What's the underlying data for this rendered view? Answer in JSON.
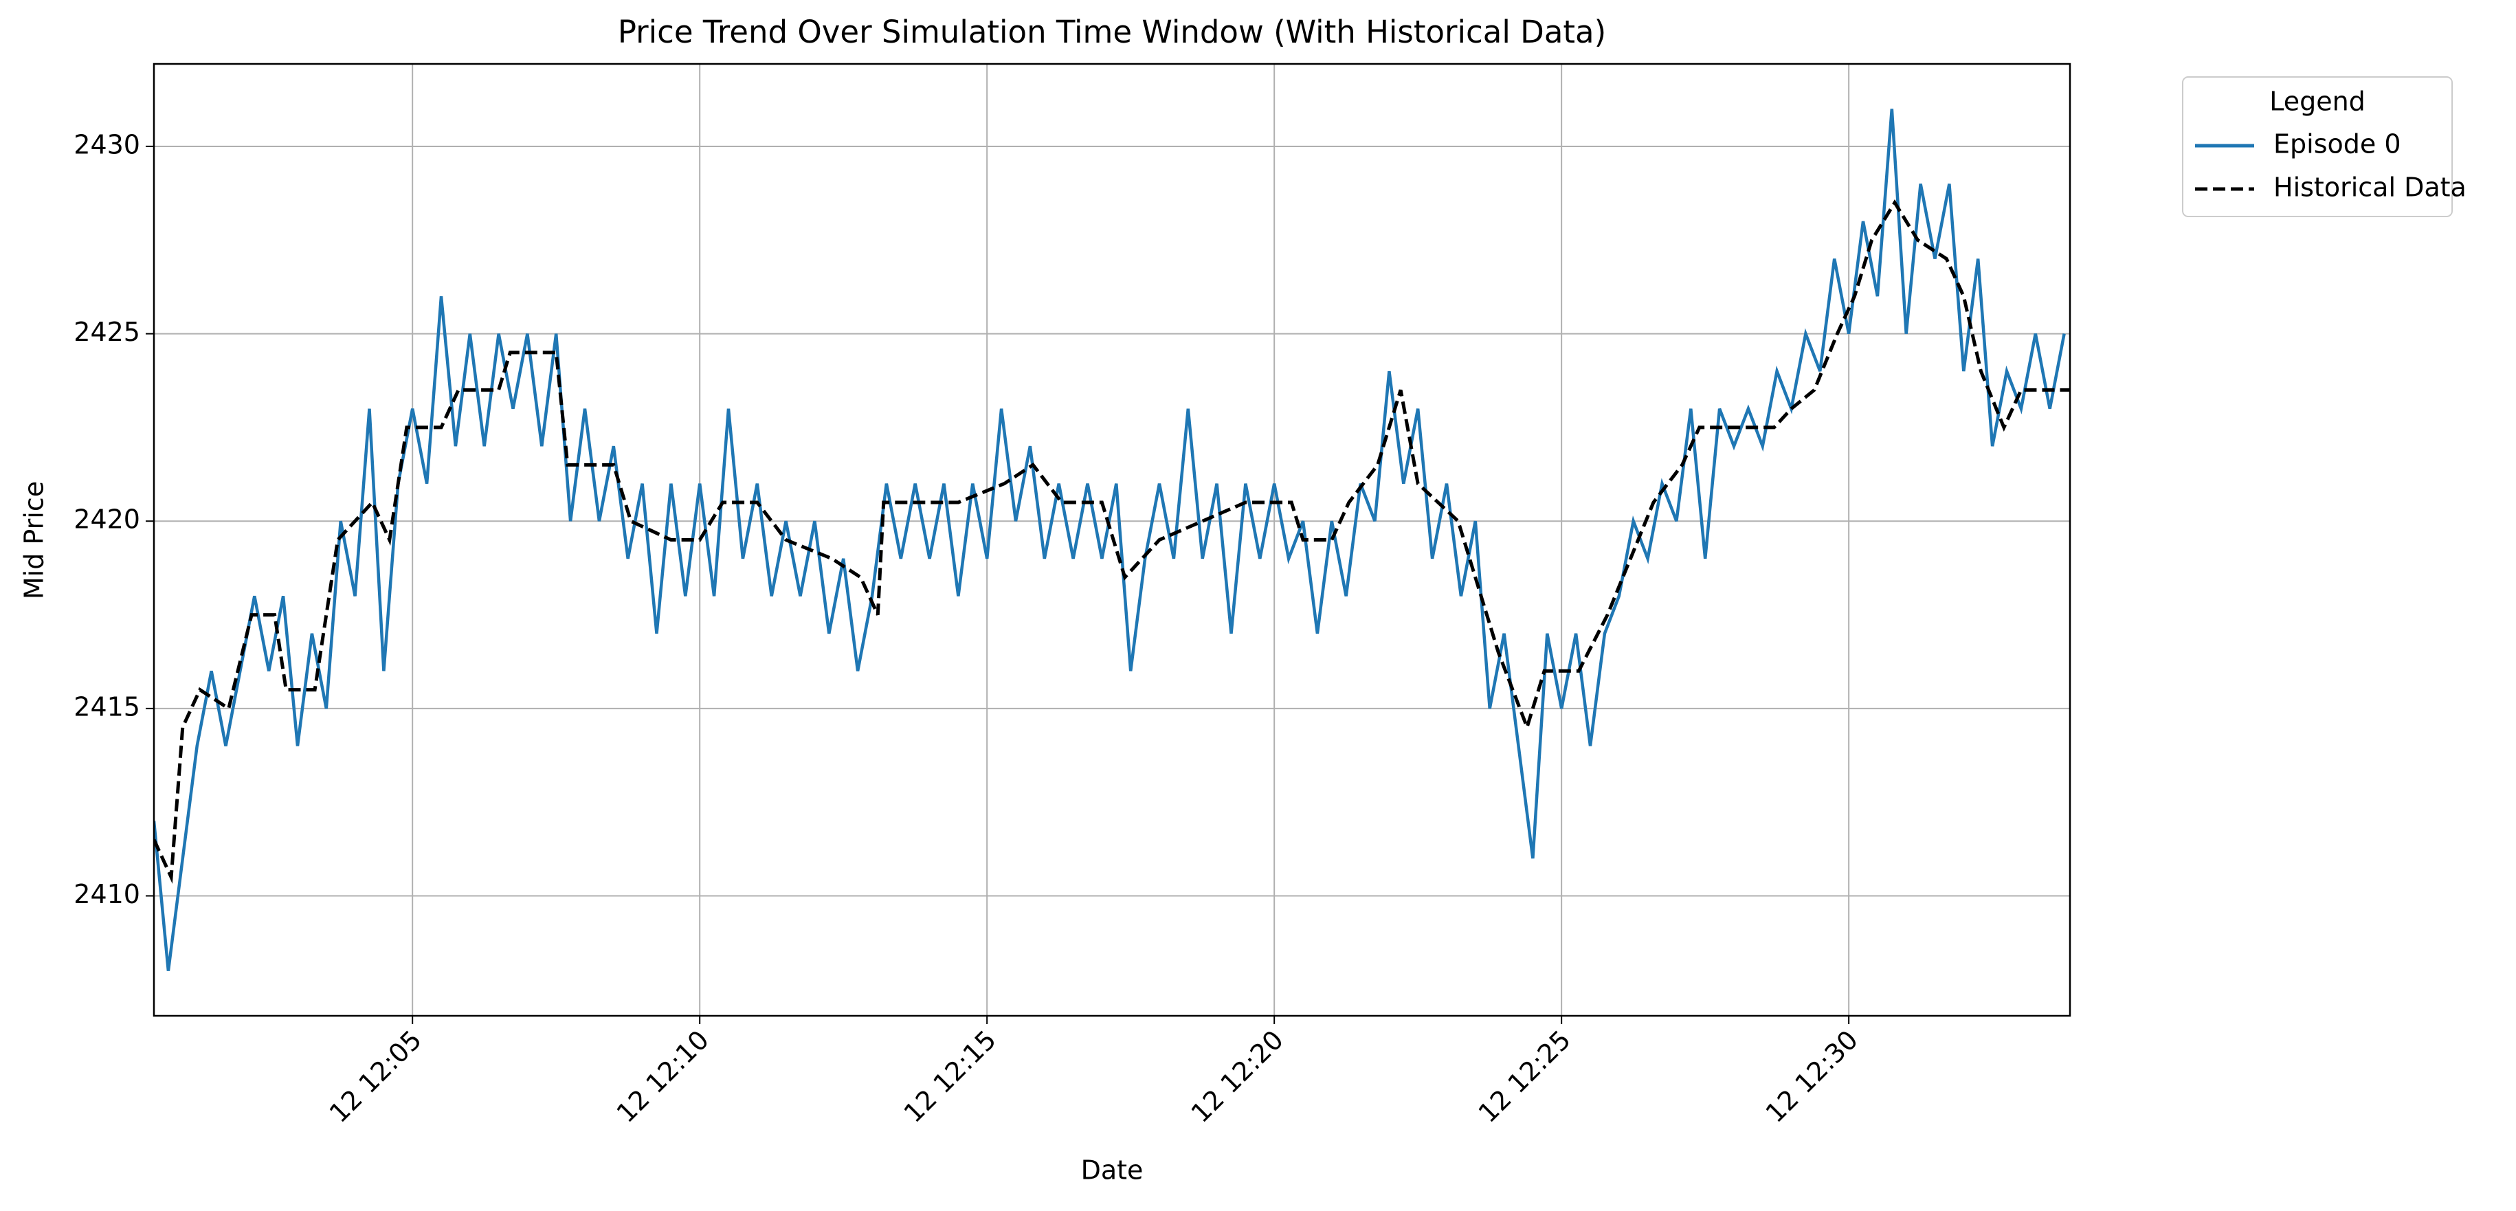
{
  "chart_data": {
    "type": "line",
    "title": "Price Trend Over Simulation Time Window (With Historical Data)",
    "xlabel": "Date",
    "ylabel": "Mid Price",
    "legend_title": "Legend",
    "legend_position": "outside upper right",
    "grid": true,
    "xlim": [
      0.5,
      33.85
    ],
    "ylim": [
      2406.8,
      2432.2
    ],
    "xticks": [
      {
        "value": 5,
        "label": "12 12:05"
      },
      {
        "value": 10,
        "label": "12 12:10"
      },
      {
        "value": 15,
        "label": "12 12:15"
      },
      {
        "value": 20,
        "label": "12 12:20"
      },
      {
        "value": 25,
        "label": "12 12:25"
      },
      {
        "value": 30,
        "label": "12 12:30"
      }
    ],
    "yticks": [
      2410,
      2415,
      2420,
      2425,
      2430
    ],
    "series": [
      {
        "name": "Episode 0",
        "color": "#1f77b4",
        "dash": false,
        "x": [
          0.5,
          0.75,
          1.0,
          1.25,
          1.5,
          1.75,
          2.0,
          2.25,
          2.5,
          2.75,
          3.0,
          3.25,
          3.5,
          3.75,
          4.0,
          4.25,
          4.5,
          4.75,
          5.0,
          5.25,
          5.5,
          5.75,
          6.0,
          6.25,
          6.5,
          6.75,
          7.0,
          7.25,
          7.5,
          7.75,
          8.0,
          8.25,
          8.5,
          8.75,
          9.0,
          9.25,
          9.5,
          9.75,
          10.0,
          10.25,
          10.5,
          10.75,
          11.0,
          11.25,
          11.5,
          11.75,
          12.0,
          12.25,
          12.5,
          12.75,
          13.0,
          13.25,
          13.5,
          13.75,
          14.0,
          14.25,
          14.5,
          14.75,
          15.0,
          15.25,
          15.5,
          15.75,
          16.0,
          16.25,
          16.5,
          16.75,
          17.0,
          17.25,
          17.5,
          17.75,
          18.0,
          18.25,
          18.5,
          18.75,
          19.0,
          19.25,
          19.5,
          19.75,
          20.0,
          20.25,
          20.5,
          20.75,
          21.0,
          21.25,
          21.5,
          21.75,
          22.0,
          22.25,
          22.5,
          22.75,
          23.0,
          23.25,
          23.5,
          23.75,
          24.0,
          24.25,
          24.5,
          24.75,
          25.0,
          25.25,
          25.5,
          25.75,
          26.0,
          26.25,
          26.5,
          26.75,
          27.0,
          27.25,
          27.5,
          27.75,
          28.0,
          28.25,
          28.5,
          28.75,
          29.0,
          29.25,
          29.5,
          29.75,
          30.0,
          30.25,
          30.5,
          30.75,
          31.0,
          31.25,
          31.5,
          31.75,
          32.0,
          32.25,
          32.5,
          32.75,
          33.0,
          33.25,
          33.5,
          33.75
        ],
        "values": [
          2412,
          2408,
          2411,
          2414,
          2416,
          2414,
          2416,
          2418,
          2416,
          2418,
          2414,
          2417,
          2415,
          2420,
          2418,
          2423,
          2416,
          2421,
          2423,
          2421,
          2426,
          2422,
          2425,
          2422,
          2425,
          2423,
          2425,
          2422,
          2425,
          2420,
          2423,
          2420,
          2422,
          2419,
          2421,
          2417,
          2421,
          2418,
          2421,
          2418,
          2423,
          2419,
          2421,
          2418,
          2420,
          2418,
          2420,
          2417,
          2419,
          2416,
          2418,
          2421,
          2419,
          2421,
          2419,
          2421,
          2418,
          2421,
          2419,
          2423,
          2420,
          2422,
          2419,
          2421,
          2419,
          2421,
          2419,
          2421,
          2416,
          2419,
          2421,
          2419,
          2423,
          2419,
          2421,
          2417,
          2421,
          2419,
          2421,
          2419,
          2420,
          2417,
          2420,
          2418,
          2421,
          2420,
          2424,
          2421,
          2423,
          2419,
          2421,
          2418,
          2420,
          2415,
          2417,
          2414,
          2411,
          2417,
          2415,
          2417,
          2414,
          2417,
          2418,
          2420,
          2419,
          2421,
          2420,
          2423,
          2419,
          2423,
          2422,
          2423,
          2422,
          2424,
          2423,
          2425,
          2424,
          2427,
          2425,
          2428,
          2426,
          2431,
          2425,
          2429,
          2427,
          2429,
          2424,
          2427,
          2422,
          2424,
          2423,
          2425,
          2423,
          2425
        ]
      },
      {
        "name": "Historical Data",
        "color": "#000000",
        "dash": true,
        "x": [
          0.5,
          0.8,
          1.0,
          1.3,
          1.8,
          2.2,
          2.6,
          2.8,
          3.3,
          3.7,
          4.3,
          4.6,
          4.9,
          5.5,
          5.8,
          6.5,
          6.7,
          7.5,
          7.7,
          8.5,
          8.8,
          9.5,
          10.0,
          10.4,
          11.0,
          11.5,
          12.3,
          12.8,
          13.1,
          13.2,
          14.5,
          15.3,
          15.8,
          16.3,
          17.0,
          17.4,
          18.0,
          19.5,
          20.3,
          20.5,
          21.0,
          21.3,
          21.8,
          22.2,
          22.5,
          23.2,
          23.6,
          23.9,
          24.4,
          24.7,
          25.3,
          25.8,
          26.2,
          26.6,
          27.1,
          27.4,
          28.2,
          28.7,
          29.0,
          29.4,
          29.8,
          30.1,
          30.4,
          30.8,
          31.2,
          31.7,
          32.0,
          32.3,
          32.7,
          33.0,
          33.85
        ],
        "values": [
          2411.5,
          2410.5,
          2414.5,
          2415.5,
          2415,
          2417.5,
          2417.5,
          2415.5,
          2415.5,
          2419.5,
          2420.5,
          2419.5,
          2422.5,
          2422.5,
          2423.5,
          2423.5,
          2424.5,
          2424.5,
          2421.5,
          2421.5,
          2420,
          2419.5,
          2419.5,
          2420.5,
          2420.5,
          2419.5,
          2419,
          2418.5,
          2417.5,
          2420.5,
          2420.5,
          2421,
          2421.5,
          2420.5,
          2420.5,
          2418.5,
          2419.5,
          2420.5,
          2420.5,
          2419.5,
          2419.5,
          2420.5,
          2421.5,
          2423.5,
          2421,
          2420,
          2418,
          2416.5,
          2414.5,
          2416,
          2416,
          2417.5,
          2419,
          2420.5,
          2421.5,
          2422.5,
          2422.5,
          2422.5,
          2423,
          2423.5,
          2425,
          2426,
          2427.5,
          2428.5,
          2427.5,
          2427,
          2426,
          2424,
          2422.5,
          2423.5,
          2423.5
        ]
      }
    ]
  }
}
